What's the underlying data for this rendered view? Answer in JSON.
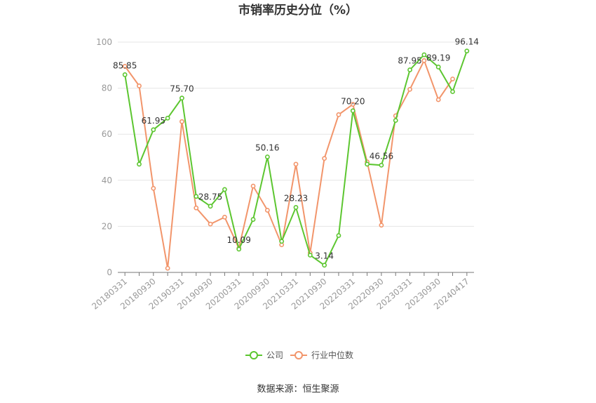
{
  "chart_data": {
    "type": "line",
    "title": "市销率历史分位（%）",
    "ylim": [
      0,
      100
    ],
    "y_ticks": [
      0,
      20,
      40,
      60,
      80,
      100
    ],
    "x_tick_labels": [
      "20180331",
      "20180930",
      "20190331",
      "20190930",
      "20200331",
      "20200930",
      "20210331",
      "20210930",
      "20220331",
      "20220930",
      "20230331",
      "20230930",
      "20240417"
    ],
    "x_points": 25,
    "series": [
      {
        "name": "公司",
        "color": "#5cc630",
        "values": [
          85.85,
          47.0,
          61.95,
          67.0,
          75.7,
          33.0,
          28.75,
          36.0,
          10.09,
          23.0,
          50.16,
          13.5,
          28.23,
          7.5,
          3.14,
          16.0,
          70.2,
          47.0,
          46.56,
          66.0,
          87.95,
          94.5,
          89.19,
          78.5,
          96.14
        ]
      },
      {
        "name": "行业中位数",
        "color": "#f2956b",
        "values": [
          89.5,
          81.0,
          36.5,
          1.8,
          65.5,
          28.0,
          21.0,
          24.0,
          10.5,
          37.5,
          27.0,
          12.0,
          47.0,
          8.5,
          49.5,
          68.5,
          73.0,
          48.0,
          20.5,
          68.0,
          79.5,
          92.0,
          75.0,
          84.0,
          null
        ]
      }
    ],
    "data_labels": [
      {
        "index": 0,
        "text": "85.85"
      },
      {
        "index": 2,
        "text": "61.95"
      },
      {
        "index": 4,
        "text": "75.70"
      },
      {
        "index": 6,
        "text": "28.75"
      },
      {
        "index": 8,
        "text": "10.09"
      },
      {
        "index": 10,
        "text": "50.16"
      },
      {
        "index": 12,
        "text": "28.23"
      },
      {
        "index": 14,
        "text": "3.14"
      },
      {
        "index": 16,
        "text": "70.20"
      },
      {
        "index": 18,
        "text": "46.56"
      },
      {
        "index": 20,
        "text": "87.95"
      },
      {
        "index": 22,
        "text": "89.19"
      },
      {
        "index": 24,
        "text": "96.14"
      }
    ],
    "legend_position": "bottom",
    "grid": true
  },
  "source_text": "数据来源：恒生聚源"
}
